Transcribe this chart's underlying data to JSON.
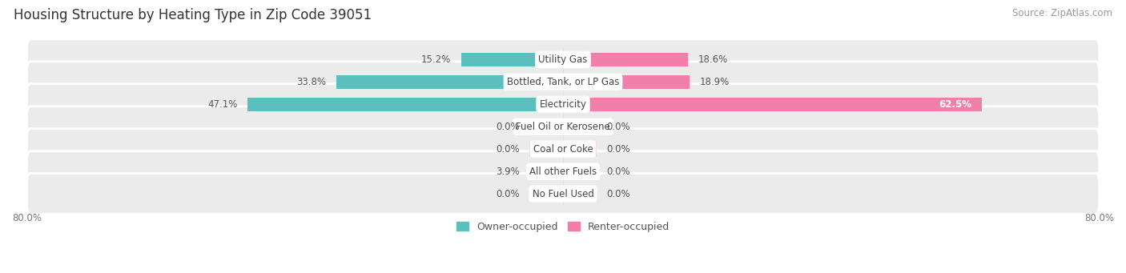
{
  "title": "Housing Structure by Heating Type in Zip Code 39051",
  "source": "Source: ZipAtlas.com",
  "categories": [
    "Utility Gas",
    "Bottled, Tank, or LP Gas",
    "Electricity",
    "Fuel Oil or Kerosene",
    "Coal or Coke",
    "All other Fuels",
    "No Fuel Used"
  ],
  "owner_values": [
    15.2,
    33.8,
    47.1,
    0.0,
    0.0,
    3.9,
    0.0
  ],
  "renter_values": [
    18.6,
    18.9,
    62.5,
    0.0,
    0.0,
    0.0,
    0.0
  ],
  "owner_color": "#5BBFBF",
  "renter_color": "#F07FAA",
  "owner_color_light": "#A8DADA",
  "renter_color_light": "#F5B8CC",
  "row_bg_color": "#EEEEEE",
  "row_bg_color_alt": "#E8E8E8",
  "axis_limit": 80.0,
  "min_bar_width": 5.0,
  "title_fontsize": 12,
  "source_fontsize": 8.5,
  "label_fontsize": 8.5,
  "value_fontsize": 8.5,
  "legend_fontsize": 9,
  "axis_label_fontsize": 8.5,
  "owner_label": "Owner-occupied",
  "renter_label": "Renter-occupied"
}
